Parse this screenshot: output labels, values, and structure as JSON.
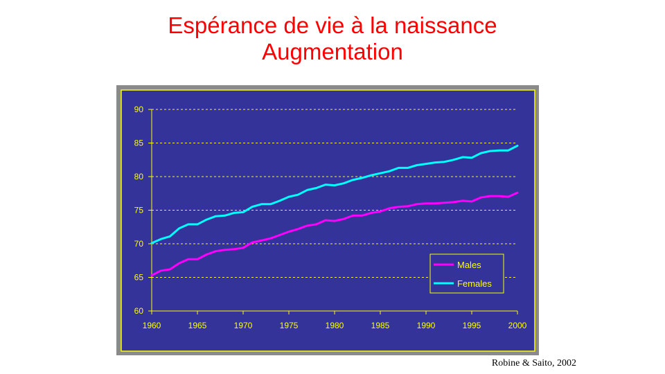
{
  "title": {
    "line1": "Espérance de vie à la naissance",
    "line2": "Augmentation",
    "color": "#ff0000"
  },
  "source": "Robine & Saito, 2002",
  "colors": {
    "frame": "#8a8a8a",
    "plot_background": "#333399",
    "border": "#ffff00",
    "grid": "#ffff00",
    "tick_text": "#ffff00"
  },
  "chart_data": {
    "type": "line",
    "title": "",
    "xlabel": "",
    "ylabel": "",
    "xlim": [
      1960,
      2000
    ],
    "ylim": [
      60,
      90
    ],
    "x_ticks": [
      "1960",
      "1965",
      "1970",
      "1975",
      "1980",
      "1985",
      "1990",
      "1995",
      "2000"
    ],
    "y_ticks": [
      "60",
      "65",
      "70",
      "75",
      "80",
      "85",
      "90"
    ],
    "grid": true,
    "legend_position": "bottom-right",
    "x": [
      1960,
      1961,
      1962,
      1963,
      1964,
      1965,
      1966,
      1967,
      1968,
      1969,
      1970,
      1971,
      1972,
      1973,
      1974,
      1975,
      1976,
      1977,
      1978,
      1979,
      1980,
      1981,
      1982,
      1983,
      1984,
      1985,
      1986,
      1987,
      1988,
      1989,
      1990,
      1991,
      1992,
      1993,
      1994,
      1995,
      1996,
      1997,
      1998,
      1999,
      2000
    ],
    "series": [
      {
        "name": "Males",
        "color": "#ff00ff",
        "values": [
          65.3,
          66.0,
          66.2,
          67.1,
          67.7,
          67.7,
          68.4,
          68.9,
          69.1,
          69.2,
          69.4,
          70.2,
          70.5,
          70.8,
          71.3,
          71.8,
          72.2,
          72.7,
          72.9,
          73.5,
          73.4,
          73.7,
          74.2,
          74.2,
          74.6,
          74.8,
          75.3,
          75.5,
          75.6,
          75.9,
          76.0,
          76.0,
          76.1,
          76.2,
          76.4,
          76.3,
          76.9,
          77.1,
          77.1,
          77.0,
          77.6
        ]
      },
      {
        "name": "Females",
        "color": "#00ffff",
        "values": [
          70.1,
          70.7,
          71.1,
          72.3,
          72.9,
          72.9,
          73.6,
          74.1,
          74.2,
          74.6,
          74.7,
          75.5,
          75.9,
          75.9,
          76.4,
          77.0,
          77.3,
          78.0,
          78.3,
          78.8,
          78.7,
          79.0,
          79.5,
          79.8,
          80.2,
          80.5,
          80.8,
          81.3,
          81.3,
          81.7,
          81.9,
          82.1,
          82.2,
          82.5,
          82.9,
          82.8,
          83.5,
          83.8,
          83.9,
          83.9,
          84.6
        ]
      }
    ]
  }
}
